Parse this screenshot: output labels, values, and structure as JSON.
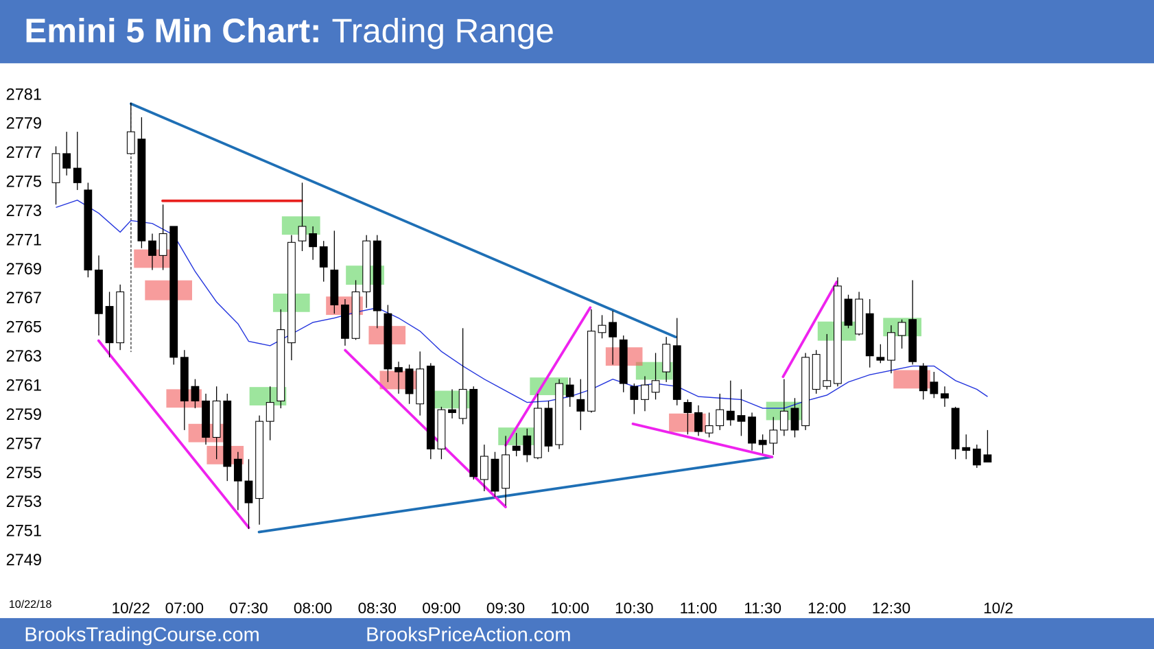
{
  "chart_data": {
    "type": "candlestick",
    "title": "Emini 5 Min Chart:",
    "subtitle": "Trading Range",
    "date_label": "10/22/18",
    "footer_left": "BrooksTradingCourse.com",
    "footer_right": "BrooksPriceAction.com",
    "categories": [
      null,
      null,
      null,
      null,
      null,
      null,
      null,
      "10/22",
      null,
      null,
      null,
      null,
      "07:00",
      null,
      null,
      null,
      null,
      null,
      "07:30",
      null,
      null,
      null,
      null,
      null,
      "08:00",
      null,
      null,
      null,
      null,
      null,
      "08:30",
      null,
      null,
      null,
      null,
      null,
      "09:00",
      null,
      null,
      null,
      null,
      null,
      "09:30",
      null,
      null,
      null,
      null,
      null,
      "10:00",
      null,
      null,
      null,
      null,
      null,
      "10:30",
      null,
      null,
      null,
      null,
      null,
      "11:00",
      null,
      null,
      null,
      null,
      null,
      "11:30",
      null,
      null,
      null,
      null,
      null,
      "12:00",
      null,
      null,
      null,
      null,
      null,
      "12:30",
      null,
      null,
      null,
      null,
      null,
      null,
      null,
      null,
      null,
      "10/2"
    ],
    "open": [
      2775,
      2777,
      2776,
      2774.5,
      2769,
      2766.5,
      2764,
      2777,
      2778,
      2771,
      2770,
      2772,
      2763,
      2761,
      2760,
      2757.5,
      2760,
      2756,
      2754.5,
      2753.3,
      2758.6,
      2760,
      2764,
      2771,
      2771.5,
      2770.6,
      2769,
      2766.6,
      2764.3,
      2767.5,
      2771,
      2766,
      2762.3,
      2762.2,
      2759.8,
      2762.4,
      2756.7,
      2759.4,
      2758.8,
      2760.8,
      2754.6,
      2756,
      2754,
      2756.9,
      2757.6,
      2756.1,
      2759.5,
      2757,
      2761.1,
      2760.1,
      2759.3,
      2764.7,
      2765.4,
      2764.2,
      2761,
      2760.1,
      2760.6,
      2762,
      2763.8,
      2759.9,
      2759.2,
      2757.8,
      2758.3,
      2759.3,
      2759,
      2758.9,
      2757.3,
      2757.1,
      2758,
      2759.5,
      2758.3,
      2760.8,
      2761,
      2761.2,
      2767,
      2764.6,
      2766,
      2763,
      2762.8,
      2764.5,
      2765.6,
      2762.4,
      2761.3,
      2760.5,
      2759.5,
      2756.8,
      2756.7,
      2756.3,
      null
    ],
    "high": [
      2777.5,
      2778.5,
      2778.5,
      2775,
      2770,
      2767.5,
      2768,
      2780.5,
      2779.5,
      2771.5,
      2773.5,
      2772,
      2763.5,
      2761.5,
      2760.5,
      2761,
      2760.5,
      2756.5,
      2756,
      2759,
      2761,
      2766.3,
      2771.4,
      2775,
      2772,
      2771,
      2771.7,
      2767,
      2768.3,
      2771.4,
      2771.4,
      2766.6,
      2762.7,
      2762.5,
      2763.4,
      2762.6,
      2759.6,
      2760.8,
      2765,
      2761,
      2757,
      2756.5,
      2757.6,
      2757.8,
      2758.1,
      2760.5,
      2760,
      2761.5,
      2761.6,
      2761.5,
      2766.3,
      2765.9,
      2766.2,
      2764.5,
      2761.2,
      2761.7,
      2763.3,
      2764.4,
      2765.7,
      2760.1,
      2759.7,
      2759.2,
      2760.5,
      2761.4,
      2760.8,
      2759.2,
      2757.7,
      2758.9,
      2761.5,
      2760.2,
      2763.3,
      2763.5,
      2764.6,
      2768.5,
      2767.3,
      2767.5,
      2767,
      2763.9,
      2765.2,
      2765.6,
      2768.3,
      2762.6,
      2762,
      2761,
      2759.6,
      2757.7,
      2757,
      2758,
      null
    ],
    "low": [
      2773.5,
      2775.5,
      2774.5,
      2768.5,
      2764.5,
      2763,
      2763.5,
      2777,
      2770.5,
      2769,
      2769,
      2762.5,
      2758,
      2759.5,
      2757,
      2756,
      2754.5,
      2752.5,
      2751.2,
      2751.5,
      2757.3,
      2759.5,
      2762.8,
      2770.3,
      2769.7,
      2768.2,
      2766,
      2763.8,
      2764.2,
      2766.4,
      2765,
      2761.3,
      2760.5,
      2759.8,
      2759,
      2756,
      2756,
      2758.8,
      2758.4,
      2754.6,
      2753.8,
      2753.4,
      2752.8,
      2756.2,
      2755.8,
      2756,
      2756.5,
      2756.7,
      2759.6,
      2758,
      2759.2,
      2764.3,
      2762.5,
      2760.6,
      2759.1,
      2759.3,
      2760.1,
      2761.3,
      2759.7,
      2757.7,
      2757.6,
      2757.5,
      2758,
      2758.3,
      2757.6,
      2756.6,
      2756.4,
      2756.3,
      2757.6,
      2757.5,
      2758,
      2760.5,
      2760.8,
      2761,
      2765,
      2764.5,
      2762.3,
      2762.6,
      2761.9,
      2763.6,
      2762.5,
      2760.1,
      2760.2,
      2759.6,
      2756,
      2756,
      2755.4,
      2755.8,
      null
    ],
    "close": [
      2777,
      2776,
      2775,
      2769,
      2766,
      2764,
      2767.5,
      2778.5,
      2771,
      2770,
      2771.5,
      2763,
      2760,
      2760,
      2757.5,
      2760,
      2755.5,
      2754.5,
      2753,
      2758.6,
      2759.9,
      2764.9,
      2770.9,
      2772,
      2770.6,
      2769.2,
      2766.6,
      2764.3,
      2767.5,
      2771,
      2766.2,
      2762.2,
      2762,
      2760.5,
      2762.2,
      2756.7,
      2759.4,
      2759.2,
      2760.8,
      2754.8,
      2756.2,
      2753.8,
      2756.3,
      2756.6,
      2756.3,
      2759.5,
      2756.9,
      2761.2,
      2760.3,
      2759.3,
      2764.8,
      2765.2,
      2764.4,
      2761.2,
      2760.1,
      2761.1,
      2761.4,
      2763.9,
      2760.1,
      2759.2,
      2757.9,
      2758.3,
      2759.4,
      2758.7,
      2758.6,
      2757.1,
      2757,
      2758,
      2759.3,
      2758,
      2763,
      2763.2,
      2761.4,
      2767.9,
      2765.2,
      2767,
      2763.1,
      2762.8,
      2764.7,
      2765.4,
      2762.7,
      2760.7,
      2760.5,
      2760.2,
      2756.7,
      2756.6,
      2755.6,
      2755.8,
      null
    ],
    "up_color": "#ffffff",
    "down_color": "#000000",
    "ema": {
      "color": "#2233dd",
      "x": [
        0,
        2,
        4,
        6,
        7,
        9,
        11,
        13,
        15,
        17,
        18,
        20,
        22,
        24,
        26,
        28,
        30,
        32,
        34,
        36,
        38,
        40,
        42,
        44,
        46,
        48,
        50,
        52,
        54,
        56,
        58,
        60,
        62,
        64,
        66,
        68,
        70,
        72,
        74,
        76,
        78,
        80,
        82,
        84,
        86,
        87
      ],
      "values": [
        2773.3,
        2773.8,
        2772.9,
        2771.6,
        2772.4,
        2772.2,
        2771.4,
        2768.9,
        2766.8,
        2765.3,
        2764.1,
        2763.8,
        2764.6,
        2765.4,
        2765.7,
        2766.1,
        2766.4,
        2765.7,
        2764.8,
        2763.4,
        2762.4,
        2761.5,
        2760.7,
        2759.9,
        2760,
        2760.3,
        2760.8,
        2761.5,
        2761,
        2761.2,
        2761,
        2760.3,
        2760.2,
        2760.1,
        2759.5,
        2759.5,
        2760,
        2760.4,
        2761.3,
        2761.8,
        2762.1,
        2762.4,
        2762.4,
        2761.4,
        2760.8,
        2760.3
      ]
    },
    "ylim": [
      2747,
      2782.5
    ],
    "yticks": [
      2749,
      2751,
      2753,
      2755,
      2757,
      2759,
      2761,
      2763,
      2765,
      2767,
      2769,
      2771,
      2773,
      2775,
      2777,
      2779,
      2781
    ],
    "grid": false
  }
}
